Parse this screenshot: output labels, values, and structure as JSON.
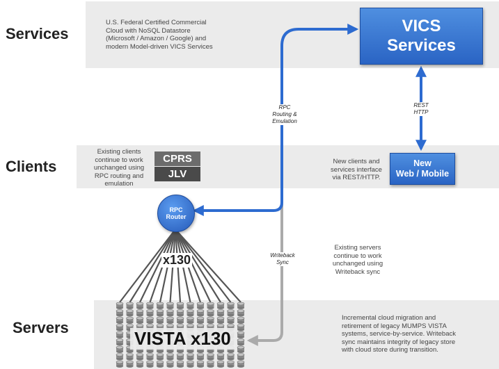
{
  "tiers": {
    "services": "Services",
    "clients": "Clients",
    "servers": "Servers"
  },
  "notes": {
    "services": "U.S. Federal Certified Commercial\nCloud with NoSQL Datastore\n(Microsoft / Amazon / Google) and\nmodern Model-driven VICS Services",
    "clients_left": "Existing clients\ncontinue to work\nunchanged using\nRPC routing and\nemulation",
    "clients_right": "New clients and\nservices interface\nvia REST/HTTP.",
    "servers_existing": "Existing servers\ncontinue to work\nunchanged using\nWriteback sync",
    "servers_migration": "Incremental cloud migration and\nretirement of legacy MUMPS VISTA\nsystems, service-by-service. Writeback\nsync maintains integrity of legacy store\nwith cloud store during transition."
  },
  "nodes": {
    "vics": "VICS\nServices",
    "new_web": "New\nWeb / Mobile",
    "cprs": "CPRS",
    "jlv": "JLV",
    "router": "RPC\nRouter",
    "fanout_count": "x130",
    "vista": "VISTA x130"
  },
  "edges": {
    "rpc": "RPC\nRouting &\nEmulation",
    "rest": "REST\nHTTP",
    "writeback": "Writeback\nSync"
  },
  "colors": {
    "band": "#ebebeb",
    "blue": "#2d6bd0",
    "cprs": "#6c6c6c",
    "jlv": "#4a4a4a",
    "fan_line": "#555555",
    "writeback_line": "#aaaaaa"
  }
}
